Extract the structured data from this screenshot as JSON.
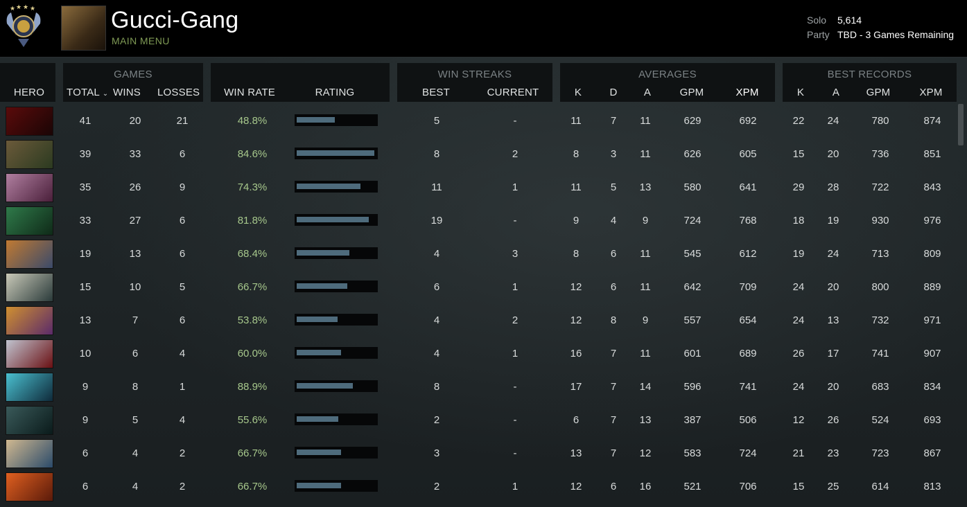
{
  "header": {
    "player_name": "Gucci-Gang",
    "main_menu": "MAIN MENU",
    "solo_label": "Solo",
    "solo_value": "5,614",
    "party_label": "Party",
    "party_value": "TBD - 3 Games Remaining"
  },
  "groups": {
    "games": "GAMES",
    "win_streaks": "WIN STREAKS",
    "averages": "AVERAGES",
    "best_records": "BEST RECORDS"
  },
  "columns": {
    "hero": "HERO",
    "total": "TOTAL",
    "wins": "WINS",
    "losses": "LOSSES",
    "win_rate": "WIN RATE",
    "rating": "RATING",
    "best": "BEST",
    "current": "CURRENT",
    "avg_k": "K",
    "avg_d": "D",
    "avg_a": "A",
    "avg_gpm": "GPM",
    "avg_xpm": "XPM",
    "best_k": "K",
    "best_a": "A",
    "best_gpm": "GPM",
    "best_xpm": "XPM"
  },
  "icons": {
    "sort": "chevron-down-icon",
    "medal": "rank-medal-icon"
  },
  "colors": {
    "win_rate_text": "#a7c88c",
    "rating_fill": "#4e6b7c",
    "main_menu_text": "#7f9a55"
  },
  "rows": [
    {
      "total": "41",
      "wins": "20",
      "losses": "21",
      "win_rate": "48.8%",
      "rating": 0.48,
      "best": "5",
      "current": "-",
      "k": "11",
      "d": "7",
      "a": "11",
      "gpm": "629",
      "xpm": "692",
      "bk": "22",
      "ba": "24",
      "bgpm": "780",
      "bxpm": "874",
      "c1": "#5a0b0b",
      "c2": "#1a0505"
    },
    {
      "total": "39",
      "wins": "33",
      "losses": "6",
      "win_rate": "84.6%",
      "rating": 0.98,
      "best": "8",
      "current": "2",
      "k": "8",
      "d": "3",
      "a": "11",
      "gpm": "626",
      "xpm": "605",
      "bk": "15",
      "ba": "20",
      "bgpm": "736",
      "bxpm": "851",
      "c1": "#6b5a3a",
      "c2": "#2b3a20"
    },
    {
      "total": "35",
      "wins": "26",
      "losses": "9",
      "win_rate": "74.3%",
      "rating": 0.81,
      "best": "11",
      "current": "1",
      "k": "11",
      "d": "5",
      "a": "13",
      "gpm": "580",
      "xpm": "641",
      "bk": "29",
      "ba": "28",
      "bgpm": "722",
      "bxpm": "843",
      "c1": "#b07fa0",
      "c2": "#4a1f3a"
    },
    {
      "total": "33",
      "wins": "27",
      "losses": "6",
      "win_rate": "81.8%",
      "rating": 0.91,
      "best": "19",
      "current": "-",
      "k": "9",
      "d": "4",
      "a": "9",
      "gpm": "724",
      "xpm": "768",
      "bk": "18",
      "ba": "19",
      "bgpm": "930",
      "bxpm": "976",
      "c1": "#2f7a4a",
      "c2": "#0f2a18"
    },
    {
      "total": "19",
      "wins": "13",
      "losses": "6",
      "win_rate": "68.4%",
      "rating": 0.67,
      "best": "4",
      "current": "3",
      "k": "8",
      "d": "6",
      "a": "11",
      "gpm": "545",
      "xpm": "612",
      "bk": "19",
      "ba": "24",
      "bgpm": "713",
      "bxpm": "809",
      "c1": "#c07a32",
      "c2": "#3a4a6a"
    },
    {
      "total": "15",
      "wins": "10",
      "losses": "5",
      "win_rate": "66.7%",
      "rating": 0.64,
      "best": "6",
      "current": "1",
      "k": "12",
      "d": "6",
      "a": "11",
      "gpm": "642",
      "xpm": "709",
      "bk": "24",
      "ba": "20",
      "bgpm": "800",
      "bxpm": "889",
      "c1": "#c9c9b8",
      "c2": "#2a3a3a"
    },
    {
      "total": "13",
      "wins": "7",
      "losses": "6",
      "win_rate": "53.8%",
      "rating": 0.52,
      "best": "4",
      "current": "2",
      "k": "12",
      "d": "8",
      "a": "9",
      "gpm": "557",
      "xpm": "654",
      "bk": "24",
      "ba": "13",
      "bgpm": "732",
      "bxpm": "971",
      "c1": "#d09030",
      "c2": "#5a2a6a"
    },
    {
      "total": "10",
      "wins": "6",
      "losses": "4",
      "win_rate": "60.0%",
      "rating": 0.56,
      "best": "4",
      "current": "1",
      "k": "16",
      "d": "7",
      "a": "11",
      "gpm": "601",
      "xpm": "689",
      "bk": "26",
      "ba": "17",
      "bgpm": "741",
      "bxpm": "907",
      "c1": "#c0c4d0",
      "c2": "#6a0f12"
    },
    {
      "total": "9",
      "wins": "8",
      "losses": "1",
      "win_rate": "88.9%",
      "rating": 0.71,
      "best": "8",
      "current": "-",
      "k": "17",
      "d": "7",
      "a": "14",
      "gpm": "596",
      "xpm": "741",
      "bk": "24",
      "ba": "20",
      "bgpm": "683",
      "bxpm": "834",
      "c1": "#4ac0d0",
      "c2": "#0f2a3a"
    },
    {
      "total": "9",
      "wins": "5",
      "losses": "4",
      "win_rate": "55.6%",
      "rating": 0.53,
      "best": "2",
      "current": "-",
      "k": "6",
      "d": "7",
      "a": "13",
      "gpm": "387",
      "xpm": "506",
      "bk": "12",
      "ba": "26",
      "bgpm": "524",
      "bxpm": "693",
      "c1": "#3a5a5a",
      "c2": "#0a1a1a"
    },
    {
      "total": "6",
      "wins": "4",
      "losses": "2",
      "win_rate": "66.7%",
      "rating": 0.56,
      "best": "3",
      "current": "-",
      "k": "13",
      "d": "7",
      "a": "12",
      "gpm": "583",
      "xpm": "724",
      "bk": "21",
      "ba": "23",
      "bgpm": "723",
      "bxpm": "867",
      "c1": "#d0b890",
      "c2": "#2a4a6a"
    },
    {
      "total": "6",
      "wins": "4",
      "losses": "2",
      "win_rate": "66.7%",
      "rating": 0.56,
      "best": "2",
      "current": "1",
      "k": "12",
      "d": "6",
      "a": "16",
      "gpm": "521",
      "xpm": "706",
      "bk": "15",
      "ba": "25",
      "bgpm": "614",
      "bxpm": "813",
      "c1": "#e06020",
      "c2": "#5a1a0a"
    }
  ]
}
